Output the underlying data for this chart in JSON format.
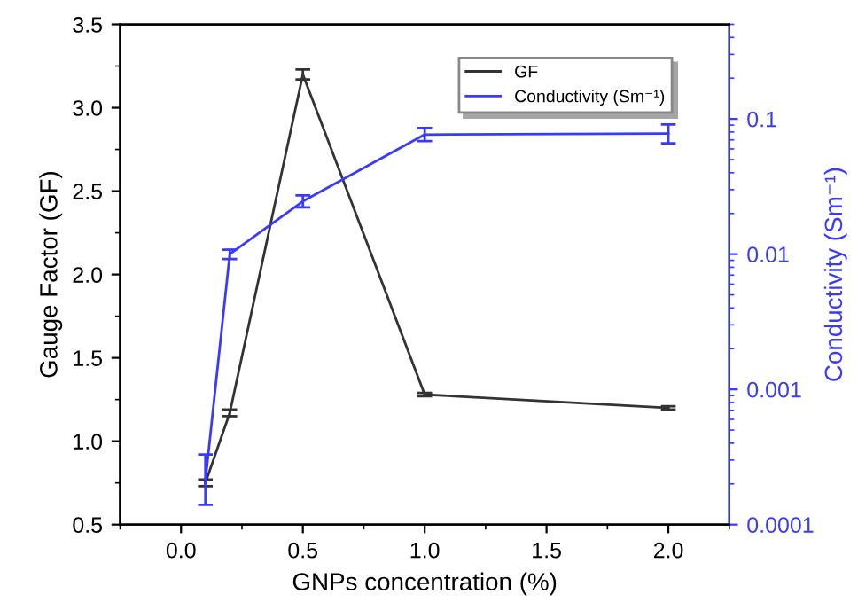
{
  "chart_data": {
    "type": "line",
    "xlabel": "GNPs concentration (%)",
    "ylabel": "Gauge Factor (GF)",
    "y2label": "Conductivity (Sm⁻¹)",
    "x": [
      0.1,
      0.2,
      0.5,
      1.0,
      2.0
    ],
    "series": [
      {
        "name": "GF",
        "color": "#333333",
        "values": [
          0.75,
          1.17,
          3.2,
          1.28,
          1.2
        ],
        "errors": [
          0.02,
          0.02,
          0.03,
          0.01,
          0.01
        ]
      },
      {
        "name": "Conductivity (Sm⁻¹)",
        "color": "#3a3aff",
        "axis": "y2",
        "values": [
          0.00021,
          0.01,
          0.0246,
          0.0766,
          0.078
        ],
        "errors": [
          [
            0.00014,
            0.00033
          ],
          [
            0.0092,
            0.0108
          ],
          [
            0.0222,
            0.0272
          ],
          [
            0.0686,
            0.0855
          ],
          [
            0.066,
            0.091
          ]
        ]
      }
    ],
    "xlim": [
      -0.25,
      2.25
    ],
    "xticks": [
      {
        "value": 0,
        "label": "0.0"
      },
      0.5,
      {
        "value": 1,
        "label": "1.0"
      },
      1.5,
      {
        "value": 2,
        "label": "2.0"
      }
    ],
    "ylim": [
      0.5,
      3.5
    ],
    "yticks": [
      0.5,
      {
        "value": 1,
        "label": "1.0"
      },
      1.5,
      {
        "value": 2,
        "label": "2.0"
      },
      2.5,
      {
        "value": 3,
        "label": "3.0"
      },
      3.5
    ],
    "y2lim": [
      0.0001,
      0.5
    ],
    "y2ticks": [
      0.0001,
      0.001,
      0.01,
      0.1
    ],
    "log": "y2",
    "grid": false,
    "legend": "top right",
    "marker": "none",
    "line_style": "solid"
  }
}
